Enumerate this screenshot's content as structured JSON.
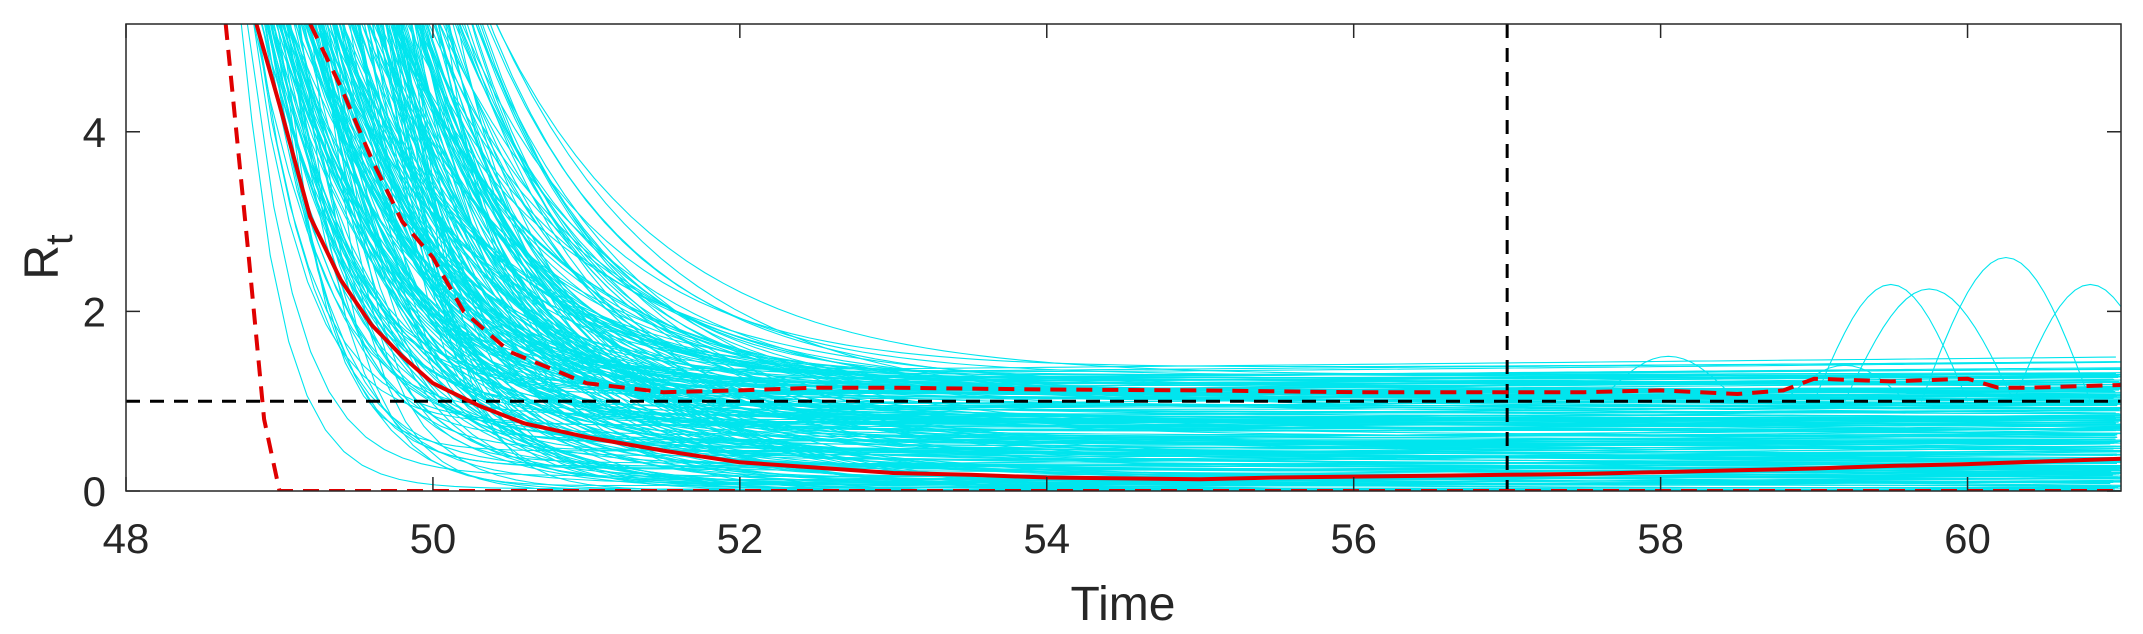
{
  "chart_data": {
    "type": "line",
    "xlabel": "Time",
    "ylabel": "R",
    "ylabel_subscript": "t",
    "xlim": [
      48,
      61
    ],
    "ylim": [
      0,
      5.2
    ],
    "xticks": [
      48,
      50,
      52,
      54,
      56,
      58,
      60
    ],
    "yticks": [
      0,
      2,
      4
    ],
    "grid": false,
    "colors": {
      "samples": "#00e5ee",
      "median": "#e00000",
      "bounds": "#e00000",
      "reference": "#000000",
      "axis": "#262626"
    },
    "reference_lines": {
      "horizontal_y": 1,
      "vertical_x": 57
    },
    "sample_curves": {
      "description_count": 260,
      "start_x_range": [
        48.7,
        50.0
      ],
      "plateau_range": [
        0,
        1.3
      ]
    },
    "series": [
      {
        "name": "median",
        "style": "solid",
        "x": [
          48.85,
          49.0,
          49.2,
          49.4,
          49.6,
          49.8,
          50.0,
          50.3,
          50.6,
          51.0,
          51.5,
          52.0,
          52.5,
          53.0,
          53.5,
          54.0,
          54.5,
          55.0,
          55.5,
          56.0,
          56.5,
          57.0,
          57.5,
          58.0,
          58.5,
          59.0,
          59.5,
          60.0,
          60.5,
          61.0
        ],
        "y": [
          5.2,
          4.3,
          3.05,
          2.35,
          1.85,
          1.5,
          1.2,
          0.95,
          0.75,
          0.6,
          0.45,
          0.32,
          0.26,
          0.2,
          0.18,
          0.15,
          0.14,
          0.13,
          0.15,
          0.16,
          0.17,
          0.18,
          0.19,
          0.21,
          0.23,
          0.25,
          0.28,
          0.3,
          0.33,
          0.36
        ]
      },
      {
        "name": "upper bound",
        "style": "dashed",
        "x": [
          49.2,
          49.4,
          49.6,
          49.8,
          50.0,
          50.2,
          50.5,
          51.0,
          51.5,
          52.0,
          52.5,
          53.0,
          54.0,
          55.0,
          56.0,
          57.0,
          57.5,
          58.0,
          58.5,
          58.8,
          59.0,
          59.5,
          60.0,
          60.2,
          60.4,
          61.0
        ],
        "y": [
          5.2,
          4.5,
          3.7,
          3.0,
          2.6,
          2.0,
          1.55,
          1.2,
          1.1,
          1.12,
          1.15,
          1.15,
          1.13,
          1.12,
          1.1,
          1.1,
          1.1,
          1.12,
          1.08,
          1.12,
          1.25,
          1.22,
          1.25,
          1.15,
          1.15,
          1.18
        ]
      },
      {
        "name": "lower bound",
        "style": "dashed",
        "x": [
          48.65,
          48.8,
          48.9,
          49.0,
          61.0
        ],
        "y": [
          5.2,
          2.6,
          0.8,
          0,
          0
        ]
      }
    ]
  }
}
